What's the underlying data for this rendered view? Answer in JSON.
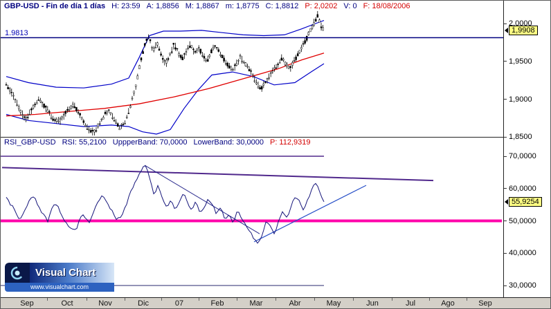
{
  "app": {
    "name": "Visual Chart"
  },
  "price_panel": {
    "header_segments": [
      {
        "text": "GBP-USD - Fin de día 1 días",
        "color": "#000080",
        "bold": true
      },
      {
        "text": "H: 23:59",
        "color": "#000080"
      },
      {
        "text": "A: 1,8856",
        "color": "#000080"
      },
      {
        "text": "M: 1,8867",
        "color": "#000080"
      },
      {
        "text": "m: 1,8775",
        "color": "#000080"
      },
      {
        "text": "C: 1,8812",
        "color": "#000080"
      },
      {
        "text": "P: 2,0202",
        "color": "#d40000"
      },
      {
        "text": "V: 0",
        "color": "#000080"
      },
      {
        "text": "F: 18/08/2006",
        "color": "#d40000"
      }
    ],
    "hline_label": "1.9813",
    "axis_ticks": [
      {
        "label": "2,0000",
        "value": 2.0
      },
      {
        "label": "1,9500",
        "value": 1.95
      },
      {
        "label": "1,9000",
        "value": 1.9
      },
      {
        "label": "1,8500",
        "value": 1.85
      }
    ],
    "tag": {
      "label": "1,9908",
      "value": 1.9908
    }
  },
  "rsi_panel": {
    "header_segments": [
      {
        "text": "RSI_GBP-USD",
        "color": "#000080"
      },
      {
        "text": "RSI: 55,2100",
        "color": "#000080"
      },
      {
        "text": "UppperBand: 70,0000",
        "color": "#000080"
      },
      {
        "text": "LowerBand: 30,0000",
        "color": "#000080"
      },
      {
        "text": "P: 112,9319",
        "color": "#d40000"
      }
    ],
    "axis_ticks": [
      {
        "label": "70,0000",
        "value": 70
      },
      {
        "label": "60,0000",
        "value": 60
      },
      {
        "label": "50,0000",
        "value": 50
      },
      {
        "label": "40,0000",
        "value": 40
      },
      {
        "label": "30,0000",
        "value": 30
      }
    ],
    "tag": {
      "label": "55,9254",
      "value": 55.9254
    }
  },
  "time_axis": {
    "labels": [
      {
        "text": "Sep",
        "x": 38
      },
      {
        "text": "Oct",
        "x": 96
      },
      {
        "text": "Nov",
        "x": 151
      },
      {
        "text": "Dic",
        "x": 206
      },
      {
        "text": "07",
        "x": 258
      },
      {
        "text": "Feb",
        "x": 313
      },
      {
        "text": "Mar",
        "x": 369
      },
      {
        "text": "Abr",
        "x": 425
      },
      {
        "text": "May",
        "x": 481
      },
      {
        "text": "Jun",
        "x": 537
      },
      {
        "text": "Jul",
        "x": 592
      },
      {
        "text": "Ago",
        "x": 646
      },
      {
        "text": "Sep",
        "x": 700
      }
    ]
  },
  "logo": {
    "title": "Visual Chart",
    "url": "www.visualchart.com"
  },
  "chart_data": [
    {
      "type": "candlestick",
      "title": "GBP-USD Fin de día 1 días",
      "ylabel": "price",
      "ylim": [
        1.845,
        2.016
      ],
      "yticks": [
        2.0,
        1.95,
        1.9,
        1.85
      ],
      "last_price": 1.9908,
      "horizontal_line": {
        "value": 1.9813,
        "color": "#000080",
        "width": 1.5
      },
      "close_path": [
        [
          8,
          1.92
        ],
        [
          18,
          1.905
        ],
        [
          28,
          1.884
        ],
        [
          36,
          1.874
        ],
        [
          45,
          1.886
        ],
        [
          55,
          1.901
        ],
        [
          65,
          1.889
        ],
        [
          75,
          1.875
        ],
        [
          85,
          1.87
        ],
        [
          95,
          1.883
        ],
        [
          105,
          1.893
        ],
        [
          115,
          1.879
        ],
        [
          125,
          1.862
        ],
        [
          135,
          1.856
        ],
        [
          145,
          1.872
        ],
        [
          155,
          1.886
        ],
        [
          165,
          1.873
        ],
        [
          172,
          1.862
        ],
        [
          180,
          1.871
        ],
        [
          188,
          1.893
        ],
        [
          196,
          1.92
        ],
        [
          202,
          1.95
        ],
        [
          208,
          1.972
        ],
        [
          214,
          1.983
        ],
        [
          220,
          1.962
        ],
        [
          226,
          1.975
        ],
        [
          232,
          1.957
        ],
        [
          238,
          1.946
        ],
        [
          244,
          1.958
        ],
        [
          250,
          1.972
        ],
        [
          256,
          1.964
        ],
        [
          262,
          1.952
        ],
        [
          268,
          1.963
        ],
        [
          274,
          1.972
        ],
        [
          280,
          1.961
        ],
        [
          286,
          1.968
        ],
        [
          292,
          1.958
        ],
        [
          298,
          1.949
        ],
        [
          304,
          1.962
        ],
        [
          310,
          1.97
        ],
        [
          316,
          1.962
        ],
        [
          322,
          1.953
        ],
        [
          328,
          1.946
        ],
        [
          334,
          1.938
        ],
        [
          340,
          1.946
        ],
        [
          346,
          1.955
        ],
        [
          352,
          1.948
        ],
        [
          358,
          1.94
        ],
        [
          364,
          1.932
        ],
        [
          370,
          1.92
        ],
        [
          376,
          1.913
        ],
        [
          382,
          1.922
        ],
        [
          388,
          1.93
        ],
        [
          394,
          1.938
        ],
        [
          400,
          1.945
        ],
        [
          406,
          1.954
        ],
        [
          412,
          1.947
        ],
        [
          418,
          1.94
        ],
        [
          424,
          1.951
        ],
        [
          430,
          1.96
        ],
        [
          436,
          1.97
        ],
        [
          442,
          1.98
        ],
        [
          448,
          1.992
        ],
        [
          454,
          2.003
        ],
        [
          458,
          2.011
        ],
        [
          462,
          1.998
        ],
        [
          467,
          1.991
        ]
      ],
      "bollinger_upper": {
        "color": "#0000c8",
        "points": [
          [
            8,
            1.93
          ],
          [
            40,
            1.922
          ],
          [
            80,
            1.916
          ],
          [
            120,
            1.915
          ],
          [
            160,
            1.92
          ],
          [
            185,
            1.928
          ],
          [
            200,
            1.955
          ],
          [
            215,
            1.984
          ],
          [
            235,
            1.99
          ],
          [
            260,
            1.99
          ],
          [
            290,
            1.991
          ],
          [
            320,
            1.988
          ],
          [
            350,
            1.985
          ],
          [
            380,
            1.984
          ],
          [
            410,
            1.985
          ],
          [
            435,
            1.993
          ],
          [
            455,
            2.0
          ],
          [
            467,
            2.004
          ]
        ]
      },
      "bollinger_lower": {
        "color": "#0000c8",
        "points": [
          [
            8,
            1.88
          ],
          [
            40,
            1.872
          ],
          [
            80,
            1.868
          ],
          [
            120,
            1.864
          ],
          [
            160,
            1.866
          ],
          [
            185,
            1.864
          ],
          [
            205,
            1.857
          ],
          [
            225,
            1.854
          ],
          [
            245,
            1.86
          ],
          [
            265,
            1.888
          ],
          [
            285,
            1.912
          ],
          [
            305,
            1.932
          ],
          [
            335,
            1.936
          ],
          [
            365,
            1.93
          ],
          [
            395,
            1.919
          ],
          [
            425,
            1.922
          ],
          [
            450,
            1.937
          ],
          [
            467,
            1.947
          ]
        ]
      },
      "moving_average": {
        "color": "#e00000",
        "points": [
          [
            8,
            1.878
          ],
          [
            50,
            1.88
          ],
          [
            100,
            1.884
          ],
          [
            150,
            1.888
          ],
          [
            200,
            1.894
          ],
          [
            250,
            1.903
          ],
          [
            300,
            1.914
          ],
          [
            350,
            1.927
          ],
          [
            400,
            1.94
          ],
          [
            435,
            1.952
          ],
          [
            467,
            1.961
          ]
        ]
      }
    },
    {
      "type": "line",
      "title": "RSI_GBP-USD",
      "ylabel": "RSI",
      "ylim": [
        27,
        73
      ],
      "yticks": [
        70,
        60,
        50,
        40,
        30
      ],
      "last_value": 55.9254,
      "line_color": "#14147a",
      "rsi_path": [
        [
          8,
          57
        ],
        [
          18,
          54
        ],
        [
          28,
          50
        ],
        [
          38,
          55
        ],
        [
          48,
          58
        ],
        [
          58,
          53
        ],
        [
          68,
          50
        ],
        [
          78,
          56
        ],
        [
          88,
          52
        ],
        [
          98,
          48
        ],
        [
          108,
          47
        ],
        [
          118,
          52
        ],
        [
          128,
          49
        ],
        [
          138,
          55
        ],
        [
          148,
          58
        ],
        [
          158,
          54
        ],
        [
          168,
          50
        ],
        [
          178,
          53
        ],
        [
          188,
          59
        ],
        [
          196,
          63
        ],
        [
          204,
          66
        ],
        [
          210,
          67.5
        ],
        [
          216,
          62
        ],
        [
          222,
          58
        ],
        [
          228,
          61
        ],
        [
          234,
          57
        ],
        [
          240,
          54
        ],
        [
          246,
          57
        ],
        [
          252,
          53
        ],
        [
          258,
          56
        ],
        [
          264,
          59
        ],
        [
          270,
          56
        ],
        [
          276,
          53
        ],
        [
          282,
          56
        ],
        [
          288,
          52
        ],
        [
          294,
          54
        ],
        [
          300,
          57
        ],
        [
          306,
          55
        ],
        [
          312,
          52
        ],
        [
          318,
          54
        ],
        [
          324,
          50
        ],
        [
          330,
          52
        ],
        [
          336,
          49
        ],
        [
          342,
          53
        ],
        [
          348,
          51
        ],
        [
          354,
          49
        ],
        [
          360,
          47
        ],
        [
          366,
          44.5
        ],
        [
          372,
          43
        ],
        [
          378,
          46
        ],
        [
          384,
          50
        ],
        [
          390,
          48
        ],
        [
          396,
          46
        ],
        [
          402,
          50
        ],
        [
          408,
          53
        ],
        [
          414,
          51
        ],
        [
          420,
          55
        ],
        [
          426,
          58
        ],
        [
          432,
          56
        ],
        [
          438,
          53
        ],
        [
          444,
          57
        ],
        [
          450,
          60
        ],
        [
          456,
          62
        ],
        [
          462,
          58
        ],
        [
          467,
          55.9
        ]
      ],
      "levels": [
        {
          "name": "upper_band",
          "value": 70,
          "x_range": [
            0,
            467
          ],
          "color": "#50288c",
          "width": 1.4
        },
        {
          "name": "lower_band",
          "value": 30,
          "x_range": [
            0,
            467
          ],
          "color": "#28286e",
          "width": 1
        },
        {
          "name": "level_50",
          "value": 50,
          "x_range": [
            0,
            724
          ],
          "color": "#ff00aa",
          "width": 4
        }
      ],
      "trendlines": [
        {
          "name": "long_descending",
          "from": [
            2,
            66.5
          ],
          "to": [
            625,
            62.5
          ],
          "color": "#50288c",
          "width": 2
        },
        {
          "name": "peak_descending",
          "from": [
            208,
            67.2
          ],
          "to": [
            374,
            46
          ],
          "color": "#28288c",
          "width": 1
        },
        {
          "name": "ascending",
          "from": [
            366,
            43.5
          ],
          "to": [
            528,
            61
          ],
          "color": "#2850c8",
          "width": 1.2
        }
      ]
    }
  ]
}
